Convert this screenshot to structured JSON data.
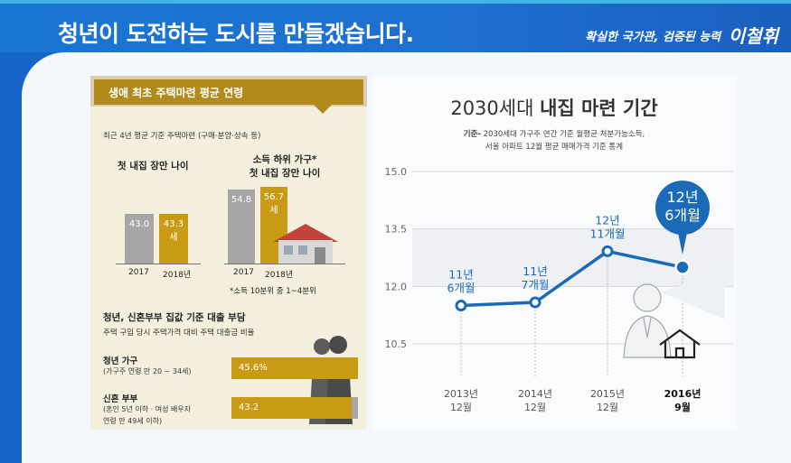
{
  "header": {
    "title": "청년이 도전하는 도시를 만들겠습니다.",
    "slogan": "확실한 국가관, 검증된 능력",
    "name": "이철휘"
  },
  "left_panel": {
    "title": "생애 최초 주택마련 평균 연령",
    "subtitle": "최근 4년 평균 기준 주택마련 (구매·분양·상속 등)",
    "group1_title": "첫 내집 장만 나이",
    "group2_title": "소득 하위 가구*",
    "group2_title2": "첫 내집 장만 나이",
    "footnote": "*소득 10분위 중 1~4분위",
    "section2_title": "청년, 신혼부부 집값 기준 대출 부담",
    "section2_subtitle": "주택 구입 당시 주택가격 대비 주택 대출금 비율",
    "unit_se": "세",
    "ratio_rows": [
      {
        "label": "청년 가구",
        "sub1": "(가구주 연령 만 20 ~ 34세)",
        "sub2": "",
        "value": 45.6,
        "value_label": "45.6%"
      },
      {
        "label": "신혼 부부",
        "sub1": "(혼인 5년 이하 · 여성 배우자",
        "sub2": "연령 만 49세 이하)",
        "value": 43.2,
        "value_label": "43.2"
      }
    ]
  },
  "right_panel": {
    "title_light": "2030세대",
    "title_bold": "내집 마련 기간",
    "note_label": "기준-",
    "note_line1": " 2030세대 가구주 연간 기준 월평균 처분가능소득,",
    "note_line2": "서울 아파트 12월 평균 매매가격 기준 통계"
  },
  "chart_data": [
    {
      "type": "bar",
      "categories": [
        "2017",
        "2018년"
      ],
      "values": [
        43.0,
        43.3
      ],
      "value_labels": [
        "43.0",
        "43.3"
      ],
      "title": "첫 내집 장만 나이",
      "ylim": [
        0,
        60
      ],
      "colors": [
        "#a6a6a6",
        "#c99b14"
      ]
    },
    {
      "type": "bar",
      "categories": [
        "2017",
        "2018년"
      ],
      "values": [
        54.8,
        56.7
      ],
      "value_labels": [
        "54.8",
        "56.7"
      ],
      "title": "소득 하위 가구* 첫 내집 장만 나이",
      "ylim": [
        0,
        60
      ],
      "colors": [
        "#a6a6a6",
        "#c99b14"
      ]
    },
    {
      "type": "line",
      "title": "2030세대 내집 마련 기간",
      "categories": [
        "2013년 12월",
        "2014년 12월",
        "2015년 12월",
        "2016년 9월"
      ],
      "x_line1": [
        "2013년",
        "2014년",
        "2015년",
        "2016년"
      ],
      "x_line2": [
        "12월",
        "12월",
        "12월",
        "9월"
      ],
      "values": [
        11.5,
        11.583,
        12.917,
        12.5
      ],
      "value_label_line1": [
        "11년",
        "11년",
        "12년",
        "12년"
      ],
      "value_label_line2": [
        "6개월",
        "7개월",
        "11개월",
        "6개월"
      ],
      "y_ticks": [
        "15.0",
        "13.5",
        "12.0",
        "10.5"
      ],
      "ylim": [
        10.5,
        15.0
      ],
      "grid": true,
      "color": "#1a6ab8"
    }
  ]
}
